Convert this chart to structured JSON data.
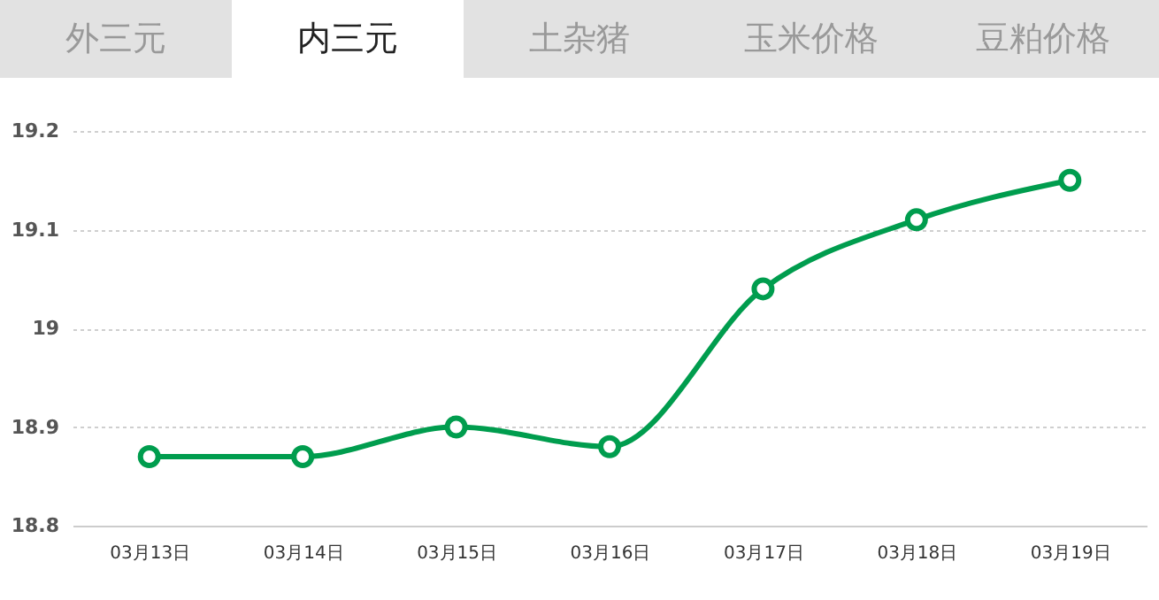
{
  "chart_data": {
    "type": "line",
    "title": "内三元",
    "annotations": [
      "外三元",
      "土杂猪",
      "玉米价格",
      "豆粕价格"
    ],
    "categories": [
      "03月13日",
      "03月14日",
      "03月15日",
      "03月16日",
      "03月17日",
      "03月18日",
      "03月19日"
    ],
    "series": [
      {
        "color": "#009d4e",
        "values": [
          18.87,
          18.87,
          18.9,
          18.88,
          19.04,
          19.11,
          19.15
        ]
      }
    ],
    "ylim": [
      18.8,
      19.2
    ],
    "yticks": [
      18.8,
      18.9,
      19,
      19.1,
      19.2
    ],
    "grid": "y",
    "marker": "circle",
    "line_style": "solid",
    "legend": false
  }
}
